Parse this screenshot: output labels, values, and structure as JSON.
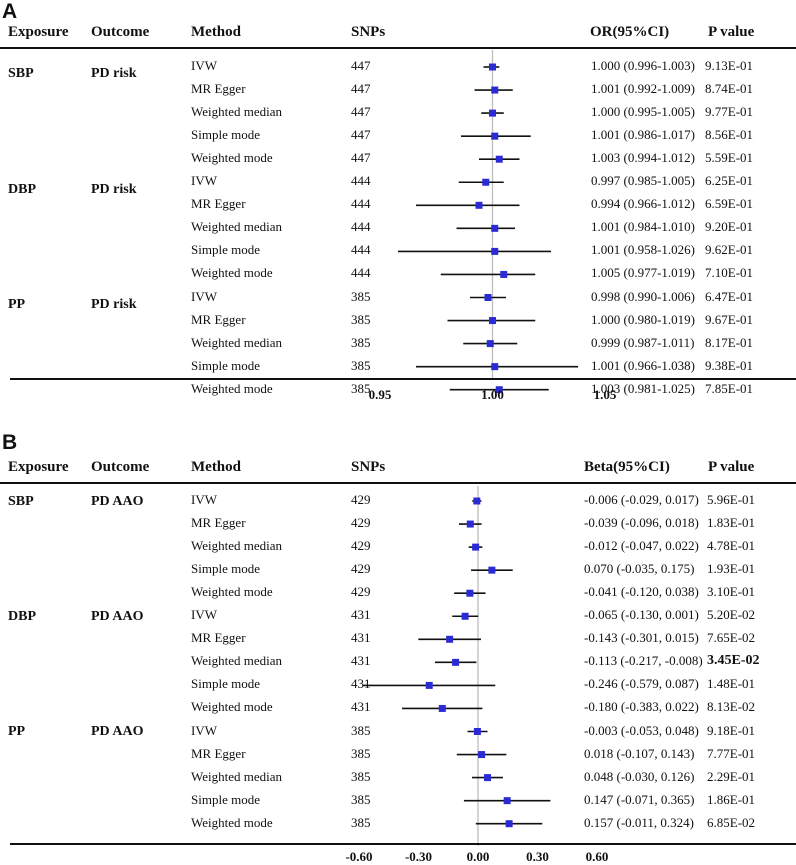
{
  "chart_data": [
    {
      "type": "forest",
      "panel_label": "A",
      "headers": {
        "exposure": "Exposure",
        "outcome": "Outcome",
        "method": "Method",
        "snps": "SNPs",
        "estimate": "OR(95%CI)",
        "pvalue": "P value"
      },
      "x_reference": 1.0,
      "x_ticks": [
        "0.95",
        "1.00",
        "1.05"
      ],
      "x_tick_values": [
        0.95,
        1.0,
        1.05
      ],
      "groups": [
        {
          "exposure": "SBP",
          "outcome": "PD risk",
          "rows": [
            {
              "method": "IVW",
              "snps": "447",
              "estimate": 1.0,
              "lower": 0.996,
              "upper": 1.003,
              "text": "1.000 (0.996-1.003)",
              "p": "9.13E-01"
            },
            {
              "method": "MR Egger",
              "snps": "447",
              "estimate": 1.001,
              "lower": 0.992,
              "upper": 1.009,
              "text": "1.001 (0.992-1.009)",
              "p": "8.74E-01"
            },
            {
              "method": "Weighted median",
              "snps": "447",
              "estimate": 1.0,
              "lower": 0.995,
              "upper": 1.005,
              "text": "1.000 (0.995-1.005)",
              "p": "9.77E-01"
            },
            {
              "method": "Simple mode",
              "snps": "447",
              "estimate": 1.001,
              "lower": 0.986,
              "upper": 1.017,
              "text": "1.001 (0.986-1.017)",
              "p": "8.56E-01"
            },
            {
              "method": "Weighted mode",
              "snps": "447",
              "estimate": 1.003,
              "lower": 0.994,
              "upper": 1.012,
              "text": "1.003 (0.994-1.012)",
              "p": "5.59E-01"
            }
          ]
        },
        {
          "exposure": "DBP",
          "outcome": "PD risk",
          "rows": [
            {
              "method": "IVW",
              "snps": "444",
              "estimate": 0.997,
              "lower": 0.985,
              "upper": 1.005,
              "text": "0.997 (0.985-1.005)",
              "p": "6.25E-01"
            },
            {
              "method": "MR Egger",
              "snps": "444",
              "estimate": 0.994,
              "lower": 0.966,
              "upper": 1.012,
              "text": "0.994 (0.966-1.012)",
              "p": "6.59E-01"
            },
            {
              "method": "Weighted median",
              "snps": "444",
              "estimate": 1.001,
              "lower": 0.984,
              "upper": 1.01,
              "text": "1.001 (0.984-1.010)",
              "p": "9.20E-01"
            },
            {
              "method": "Simple mode",
              "snps": "444",
              "estimate": 1.001,
              "lower": 0.958,
              "upper": 1.026,
              "text": "1.001 (0.958-1.026)",
              "p": "9.62E-01"
            },
            {
              "method": "Weighted mode",
              "snps": "444",
              "estimate": 1.005,
              "lower": 0.977,
              "upper": 1.019,
              "text": "1.005 (0.977-1.019)",
              "p": "7.10E-01"
            }
          ]
        },
        {
          "exposure": "PP",
          "outcome": "PD risk",
          "rows": [
            {
              "method": "IVW",
              "snps": "385",
              "estimate": 0.998,
              "lower": 0.99,
              "upper": 1.006,
              "text": "0.998 (0.990-1.006)",
              "p": "6.47E-01"
            },
            {
              "method": "MR Egger",
              "snps": "385",
              "estimate": 1.0,
              "lower": 0.98,
              "upper": 1.019,
              "text": "1.000 (0.980-1.019)",
              "p": "9.67E-01"
            },
            {
              "method": "Weighted median",
              "snps": "385",
              "estimate": 0.999,
              "lower": 0.987,
              "upper": 1.011,
              "text": "0.999 (0.987-1.011)",
              "p": "8.17E-01"
            },
            {
              "method": "Simple mode",
              "snps": "385",
              "estimate": 1.001,
              "lower": 0.966,
              "upper": 1.038,
              "text": "1.001 (0.966-1.038)",
              "p": "9.38E-01"
            },
            {
              "method": "Weighted mode",
              "snps": "385",
              "estimate": 1.003,
              "lower": 0.981,
              "upper": 1.025,
              "text": "1.003 (0.981-1.025)",
              "p": "7.85E-01"
            }
          ]
        }
      ]
    },
    {
      "type": "forest",
      "panel_label": "B",
      "headers": {
        "exposure": "Exposure",
        "outcome": "Outcome",
        "method": "Method",
        "snps": "SNPs",
        "estimate": "Beta(95%CI)",
        "pvalue": "P value"
      },
      "x_reference": 0.0,
      "x_ticks": [
        "-0.60",
        "-0.30",
        "0.00",
        "0.30",
        "0.60"
      ],
      "x_tick_values": [
        -0.6,
        -0.3,
        0.0,
        0.3,
        0.6
      ],
      "groups": [
        {
          "exposure": "SBP",
          "outcome": "PD AAO",
          "rows": [
            {
              "method": "IVW",
              "snps": "429",
              "estimate": -0.006,
              "lower": -0.029,
              "upper": 0.017,
              "text": "-0.006 (-0.029, 0.017)",
              "p": "5.96E-01"
            },
            {
              "method": "MR Egger",
              "snps": "429",
              "estimate": -0.039,
              "lower": -0.096,
              "upper": 0.018,
              "text": "-0.039 (-0.096, 0.018)",
              "p": "1.83E-01"
            },
            {
              "method": "Weighted median",
              "snps": "429",
              "estimate": -0.012,
              "lower": -0.047,
              "upper": 0.022,
              "text": "-0.012 (-0.047, 0.022)",
              "p": "4.78E-01"
            },
            {
              "method": "Simple mode",
              "snps": "429",
              "estimate": 0.07,
              "lower": -0.035,
              "upper": 0.175,
              "text": "0.070 (-0.035, 0.175)",
              "p": "1.93E-01"
            },
            {
              "method": "Weighted mode",
              "snps": "429",
              "estimate": -0.041,
              "lower": -0.12,
              "upper": 0.038,
              "text": "-0.041 (-0.120, 0.038)",
              "p": "3.10E-01"
            }
          ]
        },
        {
          "exposure": "DBP",
          "outcome": "PD AAO",
          "rows": [
            {
              "method": "IVW",
              "snps": "431",
              "estimate": -0.065,
              "lower": -0.13,
              "upper": 0.001,
              "text": "-0.065 (-0.130, 0.001)",
              "p": "5.20E-02"
            },
            {
              "method": "MR Egger",
              "snps": "431",
              "estimate": -0.143,
              "lower": -0.301,
              "upper": 0.015,
              "text": "-0.143 (-0.301, 0.015)",
              "p": "7.65E-02"
            },
            {
              "method": "Weighted median",
              "snps": "431",
              "estimate": -0.113,
              "lower": -0.217,
              "upper": -0.008,
              "text": "-0.113 (-0.217, -0.008)",
              "p": "3.45E-02",
              "bold": true
            },
            {
              "method": "Simple mode",
              "snps": "431",
              "estimate": -0.246,
              "lower": -0.579,
              "upper": 0.087,
              "text": "-0.246 (-0.579, 0.087)",
              "p": "1.48E-01"
            },
            {
              "method": "Weighted mode",
              "snps": "431",
              "estimate": -0.18,
              "lower": -0.383,
              "upper": 0.022,
              "text": "-0.180 (-0.383, 0.022)",
              "p": "8.13E-02"
            }
          ]
        },
        {
          "exposure": "PP",
          "outcome": "PD AAO",
          "rows": [
            {
              "method": "IVW",
              "snps": "385",
              "estimate": -0.003,
              "lower": -0.053,
              "upper": 0.048,
              "text": "-0.003 (-0.053, 0.048)",
              "p": "9.18E-01"
            },
            {
              "method": "MR Egger",
              "snps": "385",
              "estimate": 0.018,
              "lower": -0.107,
              "upper": 0.143,
              "text": "0.018 (-0.107, 0.143)",
              "p": "7.77E-01"
            },
            {
              "method": "Weighted median",
              "snps": "385",
              "estimate": 0.048,
              "lower": -0.03,
              "upper": 0.126,
              "text": "0.048 (-0.030, 0.126)",
              "p": "2.29E-01"
            },
            {
              "method": "Simple mode",
              "snps": "385",
              "estimate": 0.147,
              "lower": -0.071,
              "upper": 0.365,
              "text": "0.147 (-0.071, 0.365)",
              "p": "1.86E-01"
            },
            {
              "method": "Weighted mode",
              "snps": "385",
              "estimate": 0.157,
              "lower": -0.011,
              "upper": 0.324,
              "text": "0.157 (-0.011, 0.324)",
              "p": "6.85E-02"
            }
          ]
        }
      ]
    }
  ],
  "colors": {
    "marker": "#2b2bd6",
    "line": "#111111",
    "reference": "#bdbdbd"
  }
}
